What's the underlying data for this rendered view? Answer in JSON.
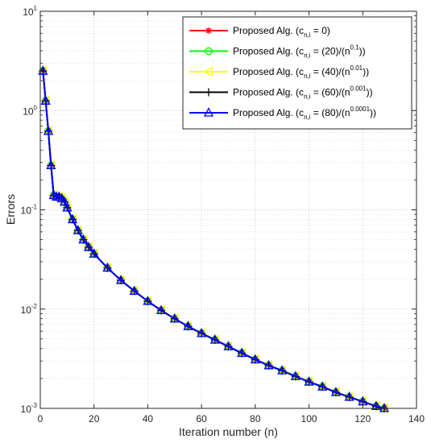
{
  "chart_data": {
    "type": "line",
    "xlabel": "Iteration number (n)",
    "ylabel": "Errors",
    "xlim": [
      0,
      140
    ],
    "ylim": [
      0.001,
      10
    ],
    "yscale": "log",
    "grid": true,
    "legend_position": "top-right",
    "x_ticks": [
      0,
      20,
      40,
      60,
      80,
      100,
      120,
      140
    ],
    "y_ticks": [
      {
        "value": 0.001,
        "base": "10",
        "exp": "-3"
      },
      {
        "value": 0.01,
        "base": "10",
        "exp": "-2"
      },
      {
        "value": 0.1,
        "base": "10",
        "exp": "-1"
      },
      {
        "value": 1,
        "base": "10",
        "exp": "0"
      },
      {
        "value": 10,
        "base": "10",
        "exp": "1"
      }
    ],
    "legend": [
      {
        "prefix": "Proposed Alg. (c",
        "sub": "n,i",
        "mid": " = 0)",
        "sup": "",
        "suffix": "",
        "color": "#ff0000",
        "marker": "asterisk"
      },
      {
        "prefix": "Proposed  Alg. (c",
        "sub": "n,i",
        "mid": " = (20)/(n",
        "sup": "0.1",
        "suffix": "))",
        "color": "#00ff00",
        "marker": "circle"
      },
      {
        "prefix": "Proposed  Alg. (c",
        "sub": "n,i",
        "mid": " = (40)/(n",
        "sup": "0.01",
        "suffix": "))",
        "color": "#ffff00",
        "marker": "triangle-left"
      },
      {
        "prefix": "Proposed  Alg. (c",
        "sub": "n,i",
        "mid": " = (60)/(n",
        "sup": "0.001",
        "suffix": "))",
        "color": "#000000",
        "marker": "plus"
      },
      {
        "prefix": "Proposed  Alg. (c",
        "sub": "n,i",
        "mid": " = (80)/(n",
        "sup": "0.0001",
        "suffix": "))",
        "color": "#0000ff",
        "marker": "triangle-up"
      }
    ],
    "series": [
      {
        "color": "#ff0000",
        "marker": "asterisk",
        "shift": 0
      },
      {
        "color": "#00ff00",
        "marker": "circle",
        "shift": 0.004
      },
      {
        "color": "#ffff00",
        "marker": "triangle-left",
        "shift": 0.008
      },
      {
        "color": "#000000",
        "marker": "plus",
        "shift": 0
      },
      {
        "color": "#0000ff",
        "marker": "triangle-up",
        "shift": 0
      }
    ],
    "x": [
      1,
      2,
      3,
      4,
      5,
      6,
      7,
      8,
      9,
      10,
      12,
      14,
      16,
      18,
      20,
      25,
      30,
      35,
      40,
      45,
      50,
      55,
      60,
      65,
      70,
      75,
      80,
      85,
      90,
      95,
      100,
      105,
      110,
      115,
      120,
      125,
      128
    ],
    "y": [
      2.5,
      1.25,
      0.62,
      0.28,
      0.14,
      0.135,
      0.135,
      0.13,
      0.12,
      0.105,
      0.08,
      0.062,
      0.05,
      0.042,
      0.036,
      0.026,
      0.0195,
      0.0152,
      0.012,
      0.0097,
      0.008,
      0.0067,
      0.0057,
      0.0049,
      0.0042,
      0.0036,
      0.0031,
      0.0027,
      0.0024,
      0.0021,
      0.00185,
      0.00165,
      0.00145,
      0.0013,
      0.00117,
      0.00105,
      0.001
    ]
  }
}
